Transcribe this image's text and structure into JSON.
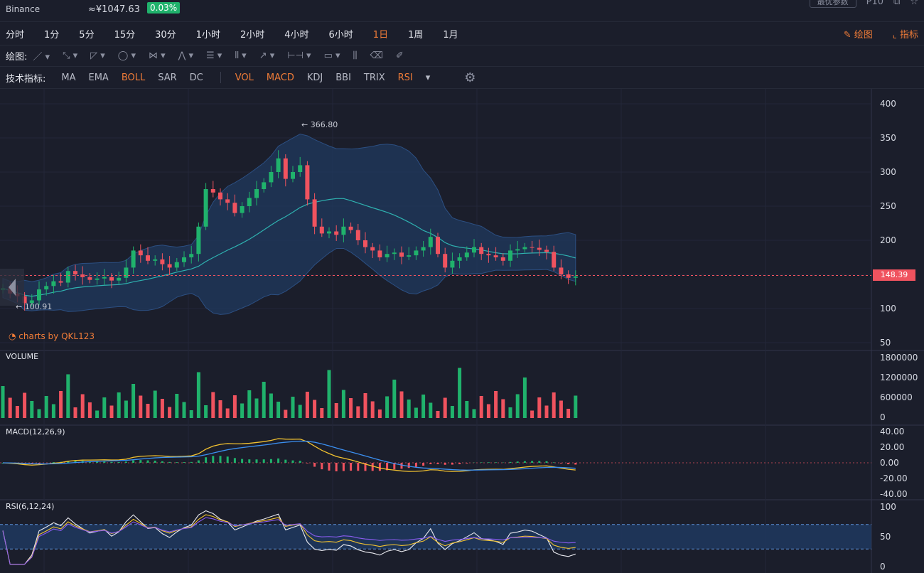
{
  "header": {
    "exchange": "Binance",
    "price": "≈¥1047.63",
    "change": "0.03%",
    "box_label": "最优参数",
    "pair": "P10"
  },
  "timeframes": [
    "分时",
    "1分",
    "5分",
    "15分",
    "30分",
    "1小时",
    "2小时",
    "4小时",
    "6小时",
    "1日",
    "1周",
    "1月"
  ],
  "active_timeframe": "1日",
  "right_tools": {
    "draw": "绘图",
    "indicator": "指标"
  },
  "drawing": {
    "label": "绘图:"
  },
  "indicators": {
    "label": "技术指标:",
    "items": [
      {
        "name": "MA",
        "on": false
      },
      {
        "name": "EMA",
        "on": false
      },
      {
        "name": "BOLL",
        "on": true
      },
      {
        "name": "SAR",
        "on": false
      },
      {
        "name": "DC",
        "on": false
      },
      {
        "name": "VOL",
        "on": true
      },
      {
        "name": "MACD",
        "on": true
      },
      {
        "name": "KDJ",
        "on": false
      },
      {
        "name": "BBI",
        "on": false
      },
      {
        "name": "TRIX",
        "on": false
      },
      {
        "name": "RSI",
        "on": true
      }
    ]
  },
  "watermark": "charts by QKL123",
  "colors": {
    "up": "#20b26c",
    "down": "#f0535f",
    "accent": "#f07c38",
    "band": "#1f3a63",
    "mid": "#2fb2b0"
  },
  "chart_data": [
    {
      "type": "candlestick",
      "series_name": "BOLL",
      "ylim": [
        50,
        400
      ],
      "y_ticks": [
        400,
        350,
        300,
        250,
        200,
        150,
        100,
        50
      ],
      "last_price": "148.39",
      "high_label": "366.80",
      "low_label": "100.91",
      "close": [
        130,
        122,
        118,
        108,
        112,
        128,
        133,
        140,
        138,
        155,
        150,
        146,
        142,
        144,
        146,
        141,
        145,
        160,
        185,
        178,
        170,
        172,
        165,
        160,
        168,
        175,
        180,
        220,
        275,
        270,
        260,
        255,
        240,
        250,
        262,
        275,
        285,
        300,
        320,
        290,
        300,
        310,
        260,
        220,
        210,
        213,
        208,
        220,
        215,
        200,
        190,
        185,
        175,
        180,
        182,
        176,
        178,
        185,
        190,
        205,
        180,
        160,
        170,
        175,
        182,
        190,
        180,
        178,
        175,
        170,
        185,
        187,
        190,
        189,
        186,
        183,
        160,
        150,
        145,
        147
      ]
    },
    {
      "type": "bar",
      "series_name": "VOLUME",
      "ylim": [
        0,
        1800000
      ],
      "y_ticks": [
        "1800000",
        "1200000",
        "600000",
        "0"
      ]
    },
    {
      "type": "line",
      "series_name": "MACD(12,26,9)",
      "ylim": [
        -40,
        40
      ],
      "y_ticks": [
        "40.00",
        "20.00",
        "0.00",
        "-20.00",
        "-40.00"
      ]
    },
    {
      "type": "line",
      "series_name": "RSI(6,12,24)",
      "ylim": [
        0,
        100
      ],
      "y_ticks": [
        "100",
        "50",
        "0"
      ]
    }
  ]
}
